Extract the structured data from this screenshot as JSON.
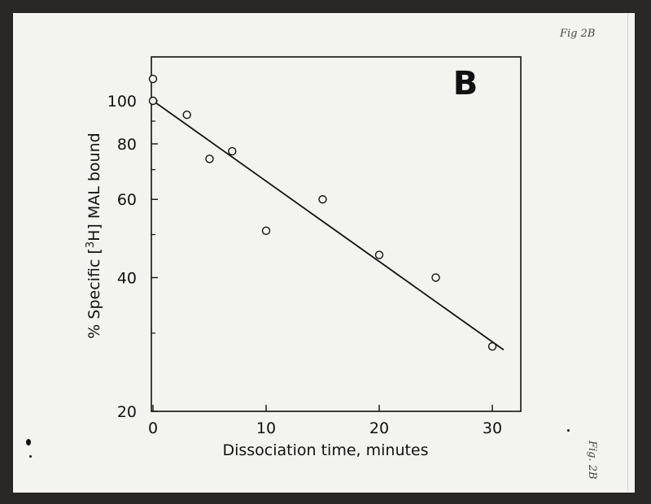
{
  "annotations": {
    "top_right": "Fig 2B",
    "side": "Fig. 2B"
  },
  "chart_data": {
    "type": "scatter",
    "panel_label": "B",
    "title": "",
    "xlabel": "Dissociation time, minutes",
    "ylabel_parts": {
      "before": "% Specific [",
      "sup": "3",
      "after": "H] MAL bound"
    },
    "x_scale": "linear",
    "y_scale": "log",
    "xlim": [
      0,
      32
    ],
    "ylim": [
      20,
      130
    ],
    "x_ticks": [
      0,
      10,
      20,
      30
    ],
    "y_ticks": [
      20,
      40,
      60,
      80,
      100
    ],
    "grid": false,
    "points": [
      {
        "x": 0,
        "y": 112
      },
      {
        "x": 0,
        "y": 100
      },
      {
        "x": 3,
        "y": 93
      },
      {
        "x": 5,
        "y": 74
      },
      {
        "x": 7,
        "y": 77
      },
      {
        "x": 10,
        "y": 51
      },
      {
        "x": 15,
        "y": 60
      },
      {
        "x": 20,
        "y": 45
      },
      {
        "x": 25,
        "y": 40
      },
      {
        "x": 30,
        "y": 28
      }
    ],
    "fit_line": {
      "x": [
        0,
        31
      ],
      "y": [
        100,
        27.5
      ]
    }
  }
}
